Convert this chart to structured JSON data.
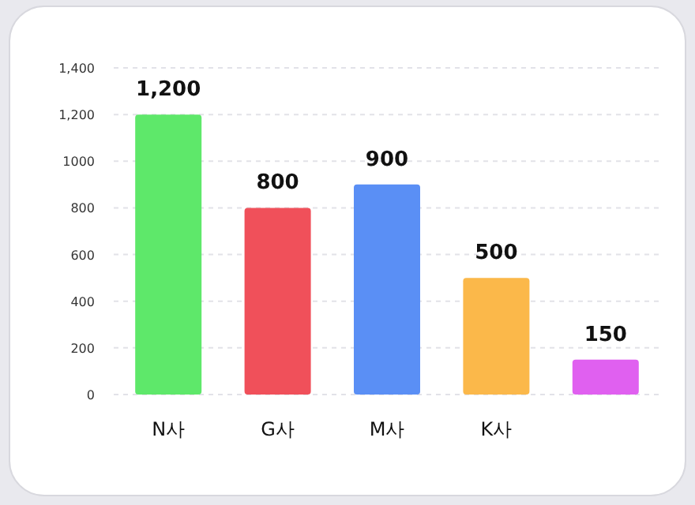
{
  "chart_data": {
    "type": "bar",
    "categories": [
      "N사",
      "G사",
      "M사",
      "K사",
      null
    ],
    "values": [
      1200,
      800,
      900,
      500,
      150
    ],
    "colors": [
      "#5ee86a",
      "#f0505a",
      "#5a8ff5",
      "#fbb84a",
      "#e060f0"
    ],
    "ylim": [
      0,
      1400
    ],
    "yticks": [
      0,
      200,
      400,
      600,
      800,
      1000,
      {
        "value": 1200,
        "label": "1,200"
      },
      {
        "value": 1400,
        "label": "1,400"
      }
    ],
    "grid": "y",
    "value_labels": [
      "1,200",
      "800",
      "900",
      "500",
      "150"
    ]
  }
}
